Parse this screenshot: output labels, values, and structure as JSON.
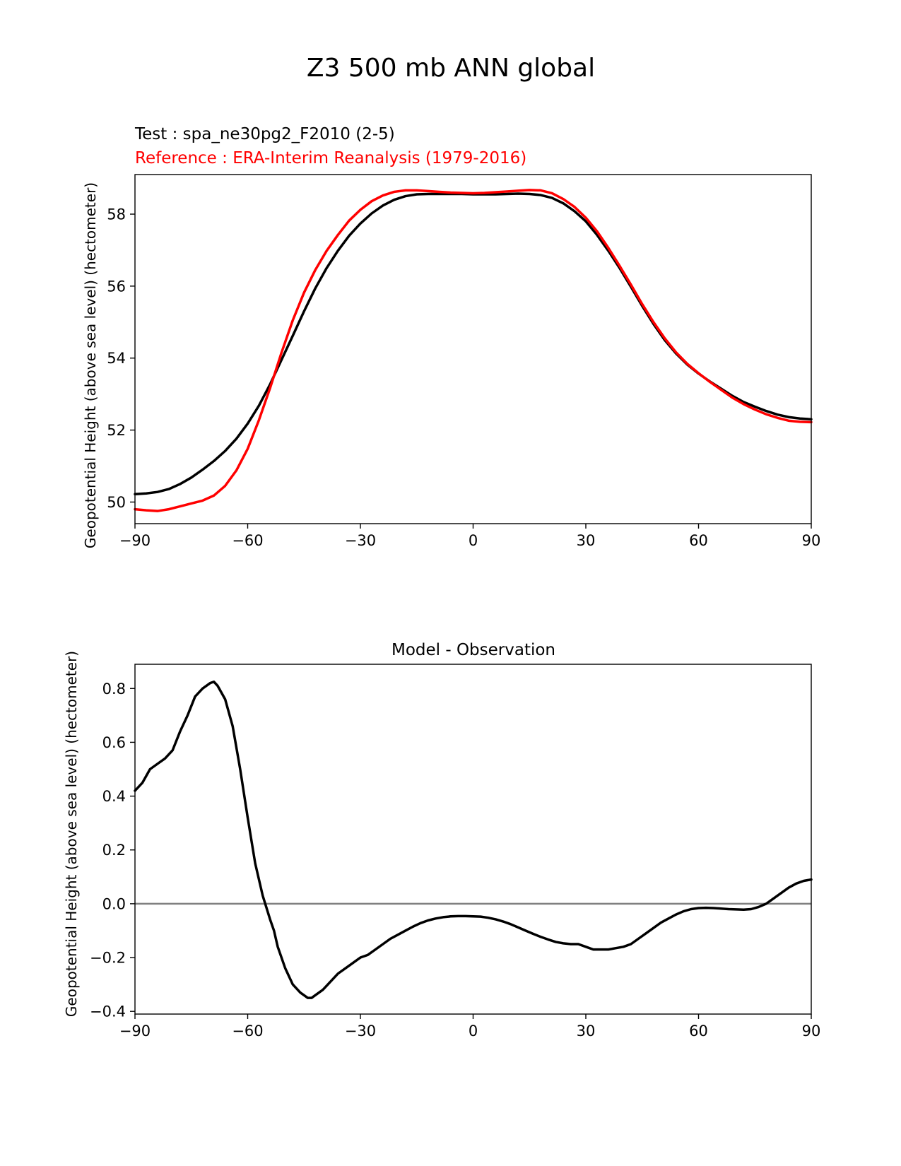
{
  "figure": {
    "suptitle": "Z3 500 mb ANN global"
  },
  "colors": {
    "test": "#000000",
    "reference": "#ff0000",
    "zero_line": "#808080"
  },
  "chart_data": [
    {
      "type": "line",
      "test_label": "Test : spa_ne30pg2_F2010 (2-5)",
      "reference_label": "Reference : ERA-Interim Reanalysis (1979-2016)",
      "xlabel": "",
      "ylabel": "Geopotential Height (above sea level) (hectometer)",
      "xlim": [
        -90,
        90
      ],
      "ylim": [
        49.4,
        59.1
      ],
      "xticks": [
        -90,
        -60,
        -30,
        0,
        30,
        60,
        90
      ],
      "xtick_labels": [
        "−90",
        "−60",
        "−30",
        "0",
        "30",
        "60",
        "90"
      ],
      "yticks": [
        50,
        52,
        54,
        56,
        58
      ],
      "ytick_labels": [
        "50",
        "52",
        "54",
        "56",
        "58"
      ],
      "grid": false,
      "series": [
        {
          "role": "test",
          "color": "#000000",
          "x": [
            -90,
            -87,
            -84,
            -81,
            -78,
            -75,
            -72,
            -69,
            -66,
            -63,
            -60,
            -57,
            -54,
            -51,
            -48,
            -45,
            -42,
            -39,
            -36,
            -33,
            -30,
            -27,
            -24,
            -21,
            -18,
            -15,
            -12,
            -9,
            -6,
            -3,
            0,
            3,
            6,
            9,
            12,
            15,
            18,
            21,
            24,
            27,
            30,
            33,
            36,
            39,
            42,
            45,
            48,
            51,
            54,
            57,
            60,
            63,
            66,
            69,
            72,
            75,
            78,
            81,
            84,
            87,
            90
          ],
          "values": [
            50.22,
            50.24,
            50.28,
            50.36,
            50.5,
            50.68,
            50.9,
            51.14,
            51.42,
            51.76,
            52.18,
            52.68,
            53.28,
            53.95,
            54.62,
            55.3,
            55.94,
            56.5,
            56.98,
            57.4,
            57.74,
            58.02,
            58.24,
            58.4,
            58.5,
            58.55,
            58.56,
            58.56,
            58.56,
            58.56,
            58.55,
            58.55,
            58.55,
            58.56,
            58.57,
            58.56,
            58.53,
            58.45,
            58.3,
            58.08,
            57.8,
            57.42,
            56.98,
            56.5,
            55.98,
            55.45,
            54.95,
            54.5,
            54.13,
            53.82,
            53.57,
            53.35,
            53.15,
            52.95,
            52.78,
            52.65,
            52.53,
            52.43,
            52.36,
            52.32,
            52.3
          ]
        },
        {
          "role": "reference",
          "color": "#ff0000",
          "x": [
            -90,
            -87,
            -84,
            -81,
            -78,
            -75,
            -72,
            -69,
            -66,
            -63,
            -60,
            -57,
            -54,
            -51,
            -48,
            -45,
            -42,
            -39,
            -36,
            -33,
            -30,
            -27,
            -24,
            -21,
            -18,
            -15,
            -12,
            -9,
            -6,
            -3,
            0,
            3,
            6,
            9,
            12,
            15,
            18,
            21,
            24,
            27,
            30,
            33,
            36,
            39,
            42,
            45,
            48,
            51,
            54,
            57,
            60,
            63,
            66,
            69,
            72,
            75,
            78,
            81,
            84,
            87,
            90
          ],
          "values": [
            49.8,
            49.77,
            49.75,
            49.8,
            49.88,
            49.96,
            50.04,
            50.18,
            50.45,
            50.88,
            51.48,
            52.28,
            53.18,
            54.15,
            55.05,
            55.82,
            56.45,
            56.98,
            57.42,
            57.82,
            58.12,
            58.36,
            58.52,
            58.62,
            58.66,
            58.66,
            58.64,
            58.62,
            58.6,
            58.59,
            58.58,
            58.59,
            58.61,
            58.63,
            58.65,
            58.67,
            58.66,
            58.58,
            58.42,
            58.2,
            57.9,
            57.52,
            57.06,
            56.56,
            56.04,
            55.5,
            55.0,
            54.55,
            54.16,
            53.84,
            53.58,
            53.34,
            53.12,
            52.9,
            52.72,
            52.57,
            52.44,
            52.34,
            52.26,
            52.23,
            52.22
          ]
        }
      ]
    },
    {
      "type": "line",
      "title": "Model - Observation",
      "xlabel": "",
      "ylabel": "Geopotential Height (above sea level) (hectometer)",
      "xlim": [
        -90,
        90
      ],
      "ylim": [
        -0.41,
        0.89
      ],
      "xticks": [
        -90,
        -60,
        -30,
        0,
        30,
        60,
        90
      ],
      "xtick_labels": [
        "−90",
        "−60",
        "−30",
        "0",
        "30",
        "60",
        "90"
      ],
      "yticks": [
        -0.4,
        -0.2,
        0.0,
        0.2,
        0.4,
        0.6,
        0.8
      ],
      "ytick_labels": [
        "−0.4",
        "−0.2",
        "0.0",
        "0.2",
        "0.4",
        "0.6",
        "0.8"
      ],
      "grid": false,
      "zero_line": 0.0,
      "series": [
        {
          "role": "difference",
          "color": "#000000",
          "x": [
            -90,
            -88,
            -86,
            -84,
            -82,
            -80,
            -78,
            -76,
            -74,
            -72,
            -70,
            -69,
            -68,
            -66,
            -64,
            -62,
            -60,
            -58,
            -56,
            -54,
            -53,
            -52,
            -50,
            -48,
            -46,
            -44,
            -43,
            -42,
            -40,
            -38,
            -36,
            -34,
            -32,
            -30,
            -28,
            -26,
            -24,
            -22,
            -20,
            -18,
            -16,
            -14,
            -12,
            -10,
            -8,
            -6,
            -4,
            -2,
            0,
            2,
            4,
            6,
            8,
            10,
            12,
            14,
            16,
            18,
            20,
            22,
            24,
            26,
            28,
            30,
            32,
            34,
            36,
            38,
            40,
            42,
            44,
            46,
            48,
            50,
            52,
            54,
            56,
            58,
            60,
            62,
            64,
            66,
            68,
            70,
            72,
            74,
            76,
            78,
            80,
            82,
            84,
            86,
            88,
            90
          ],
          "values": [
            0.42,
            0.45,
            0.5,
            0.52,
            0.54,
            0.57,
            0.64,
            0.7,
            0.77,
            0.8,
            0.82,
            0.825,
            0.81,
            0.76,
            0.66,
            0.5,
            0.32,
            0.15,
            0.03,
            -0.06,
            -0.1,
            -0.16,
            -0.24,
            -0.3,
            -0.33,
            -0.35,
            -0.35,
            -0.34,
            -0.32,
            -0.29,
            -0.26,
            -0.24,
            -0.22,
            -0.2,
            -0.19,
            -0.17,
            -0.15,
            -0.13,
            -0.115,
            -0.1,
            -0.085,
            -0.072,
            -0.062,
            -0.055,
            -0.05,
            -0.047,
            -0.046,
            -0.046,
            -0.047,
            -0.048,
            -0.052,
            -0.058,
            -0.066,
            -0.076,
            -0.088,
            -0.1,
            -0.112,
            -0.123,
            -0.133,
            -0.142,
            -0.147,
            -0.15,
            -0.15,
            -0.16,
            -0.17,
            -0.17,
            -0.17,
            -0.165,
            -0.16,
            -0.15,
            -0.13,
            -0.11,
            -0.09,
            -0.07,
            -0.055,
            -0.04,
            -0.028,
            -0.02,
            -0.016,
            -0.015,
            -0.016,
            -0.018,
            -0.02,
            -0.021,
            -0.022,
            -0.02,
            -0.012,
            0.0,
            0.02,
            0.04,
            0.06,
            0.075,
            0.085,
            0.09
          ]
        }
      ]
    }
  ]
}
